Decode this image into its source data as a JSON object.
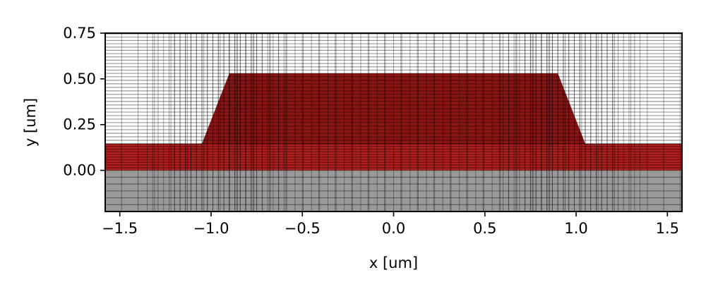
{
  "chart_data": {
    "type": "area",
    "title": "",
    "xlabel": "x [um]",
    "ylabel": "y [um]",
    "xlim": [
      -1.58,
      1.58
    ],
    "ylim": [
      -0.225,
      0.75
    ],
    "xticks": [
      -1.5,
      -1.0,
      -0.5,
      0.0,
      0.5,
      1.0,
      1.5
    ],
    "xtick_labels": [
      "−1.5",
      "−1.0",
      "−0.5",
      "0.0",
      "0.5",
      "1.0",
      "1.5"
    ],
    "yticks": [
      0.0,
      0.25,
      0.5,
      0.75
    ],
    "ytick_labels": [
      "0.00",
      "0.25",
      "0.50",
      "0.75"
    ],
    "grid": true,
    "colors": {
      "substrate": "#9a9a9a",
      "core": "#b01e1e",
      "core_dark": "#6e0e0e",
      "mesh": "#000000",
      "background": "#ffffff"
    },
    "regions": [
      {
        "kind": "substrate",
        "polygon": [
          [
            -1.58,
            -0.225
          ],
          [
            1.58,
            -0.225
          ],
          [
            1.58,
            0.0
          ],
          [
            -1.58,
            0.0
          ]
        ]
      },
      {
        "kind": "core",
        "polygon": [
          [
            -1.58,
            0.0
          ],
          [
            1.58,
            0.0
          ],
          [
            1.58,
            0.145
          ],
          [
            1.05,
            0.145
          ],
          [
            0.9,
            0.53
          ],
          [
            -0.9,
            0.53
          ],
          [
            -1.05,
            0.145
          ],
          [
            -1.58,
            0.145
          ]
        ]
      }
    ]
  }
}
